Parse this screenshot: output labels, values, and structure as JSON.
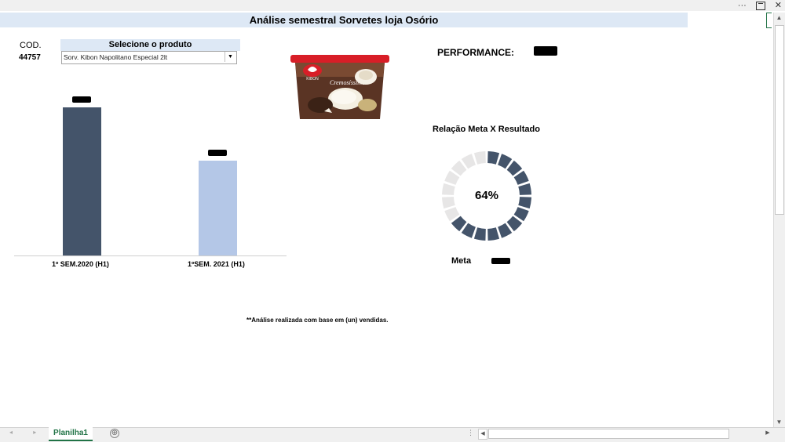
{
  "window": {
    "buttons": {
      "more": "···",
      "close": "✕"
    }
  },
  "sheet": {
    "title": "Análise semestral Sorvetes loja Osório",
    "tab_name": "Planilha1",
    "add_sheet": "⊕",
    "nav_arrows": "◂ ▸",
    "hscroll_dots": "⋮"
  },
  "product": {
    "cod_label": "COD.",
    "cod_value": "44757",
    "select_header": "Selecione  o produto",
    "select_value": "Sorv. Kibon Napolitano Especial 2lt",
    "image_brand": "KIBON",
    "image_name": "Cremosíssimo"
  },
  "chart_data": {
    "type": "bar",
    "categories": [
      "1º SEM.2020 (H1)",
      "1ºSEM. 2021 (H1)"
    ],
    "values": [
      100,
      64
    ],
    "colors": [
      "#44546a",
      "#b4c7e7"
    ],
    "data_labels_redacted": true,
    "ylim": [
      0,
      110
    ],
    "title": "",
    "xlabel": "",
    "ylabel": ""
  },
  "performance": {
    "label": "PERFORMANCE:",
    "value_redacted": true
  },
  "gauge": {
    "title": "Relação Meta X Resultado",
    "percent_label": "64%",
    "percent": 64,
    "segments": 20,
    "filled_color": "#44546a",
    "empty_color": "#e7e6e6",
    "meta_label": "Meta"
  },
  "footnote": "**Análise realizada com base em (un) vendidas."
}
